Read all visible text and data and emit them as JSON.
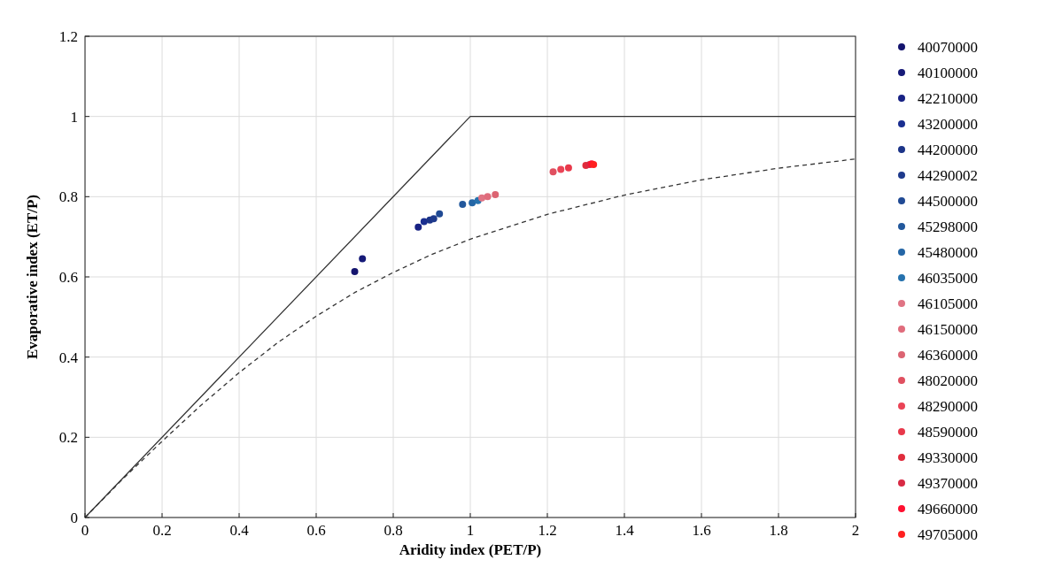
{
  "chart_data": {
    "type": "scatter",
    "xlabel": "Aridity index (PET/P)",
    "ylabel": "Evaporative index (ET/P)",
    "xlim": [
      0,
      2
    ],
    "ylim": [
      0,
      1.2
    ],
    "xticks": [
      0,
      0.2,
      0.4,
      0.6,
      0.8,
      1,
      1.2,
      1.4,
      1.6,
      1.8,
      2
    ],
    "yticks": [
      0,
      0.2,
      0.4,
      0.6,
      0.8,
      1,
      1.2
    ],
    "grid": true,
    "legend": "right",
    "marker": "circle",
    "series": [
      {
        "type": "line",
        "color": "#333333",
        "line_style": "solid",
        "marker": "none",
        "x": [
          0,
          1,
          2
        ],
        "values": [
          0,
          1,
          1
        ]
      },
      {
        "type": "line",
        "color": "#333333",
        "line_style": "dashed",
        "marker": "none",
        "x": [
          0,
          0.1,
          0.2,
          0.3,
          0.4,
          0.5,
          0.6,
          0.7,
          0.8,
          0.9,
          1,
          1.2,
          1.4,
          1.6,
          1.8,
          2
        ],
        "values": [
          0,
          0.098,
          0.19,
          0.279,
          0.361,
          0.436,
          0.502,
          0.561,
          0.611,
          0.656,
          0.694,
          0.756,
          0.804,
          0.842,
          0.871,
          0.894
        ]
      },
      {
        "name": "40070000",
        "color": "#14146e",
        "x": [
          0.7
        ],
        "values": [
          0.613
        ]
      },
      {
        "name": "40100000",
        "color": "#161a78",
        "x": [
          0.72
        ],
        "values": [
          0.645
        ]
      },
      {
        "name": "42210000",
        "color": "#182284",
        "x": [
          0.865
        ],
        "values": [
          0.724
        ]
      },
      {
        "name": "43200000",
        "color": "#1a2e90",
        "x": [
          0.88
        ],
        "values": [
          0.738
        ]
      },
      {
        "name": "44200000",
        "color": "#1c3488",
        "x": [
          0.895
        ],
        "values": [
          0.742
        ]
      },
      {
        "name": "44290002",
        "color": "#1e3a8c",
        "x": [
          0.905
        ],
        "values": [
          0.745
        ]
      },
      {
        "name": "44500000",
        "color": "#204a94",
        "x": [
          0.92
        ],
        "values": [
          0.757
        ]
      },
      {
        "name": "45298000",
        "color": "#22589c",
        "x": [
          0.98
        ],
        "values": [
          0.781
        ]
      },
      {
        "name": "45480000",
        "color": "#2466a6",
        "x": [
          1.005
        ],
        "values": [
          0.785
        ]
      },
      {
        "name": "46035000",
        "color": "#2672ae",
        "x": [
          1.02
        ],
        "values": [
          0.79
        ]
      },
      {
        "name": "46105000",
        "color": "#e07484",
        "x": [
          1.03
        ],
        "values": [
          0.797
        ]
      },
      {
        "name": "46150000",
        "color": "#e06c7c",
        "x": [
          1.045
        ],
        "values": [
          0.8
        ]
      },
      {
        "name": "46360000",
        "color": "#dc6472",
        "x": [
          1.065
        ],
        "values": [
          0.805
        ]
      },
      {
        "name": "48020000",
        "color": "#e05060",
        "x": [
          1.215
        ],
        "values": [
          0.862
        ]
      },
      {
        "name": "48290000",
        "color": "#ea4456",
        "x": [
          1.235
        ],
        "values": [
          0.868
        ]
      },
      {
        "name": "48590000",
        "color": "#e8384a",
        "x": [
          1.255
        ],
        "values": [
          0.872
        ]
      },
      {
        "name": "49330000",
        "color": "#e02c3c",
        "x": [
          1.3
        ],
        "values": [
          0.878
        ]
      },
      {
        "name": "49370000",
        "color": "#d82a44",
        "x": [
          1.31
        ],
        "values": [
          0.88
        ]
      },
      {
        "name": "49660000",
        "color": "#ff1030",
        "x": [
          1.315
        ],
        "values": [
          0.882
        ]
      },
      {
        "name": "49705000",
        "color": "#ff2020",
        "x": [
          1.32
        ],
        "values": [
          0.88
        ]
      }
    ]
  }
}
